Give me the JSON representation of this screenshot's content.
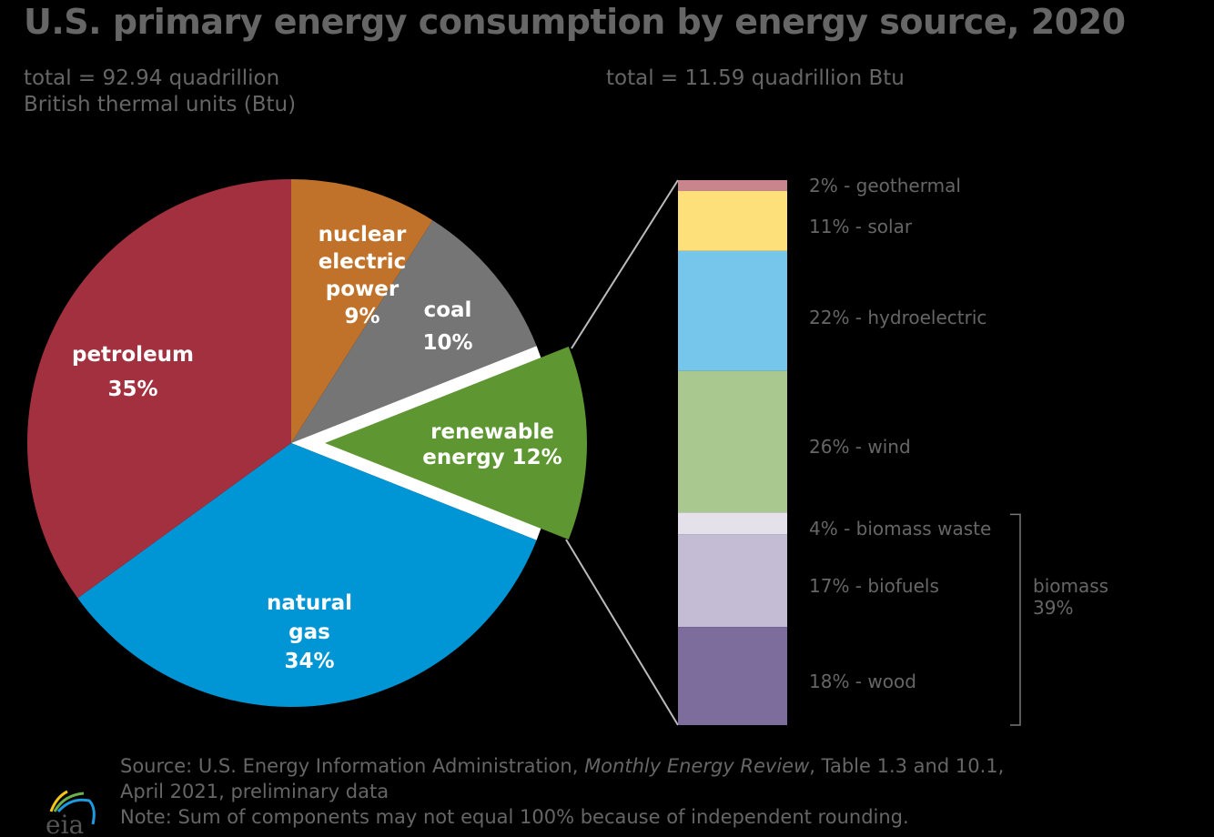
{
  "chart_data": [
    {
      "type": "pie",
      "title": "U.S. primary energy consumption by energy source, 2020",
      "subtitle": "total = 92.94 quadrillion British thermal units (Btu)",
      "subtitle_lines": [
        "total = 92.94 quadrillion",
        "British thermal units (Btu)"
      ],
      "unit": "percent",
      "slices": [
        {
          "name": "nuclear electric power",
          "label_lines": [
            "nuclear",
            "electric",
            "power",
            "9%"
          ],
          "value": 9,
          "color": "#c0722a"
        },
        {
          "name": "coal",
          "label_lines": [
            "coal",
            "10%"
          ],
          "value": 10,
          "color": "#757575"
        },
        {
          "name": "renewable energy",
          "label_lines": [
            "renewable",
            "energy 12%"
          ],
          "value": 12,
          "color": "#5e9732",
          "exploded": true
        },
        {
          "name": "natural gas",
          "label_lines": [
            "natural",
            "gas",
            "34%"
          ],
          "value": 34,
          "color": "#0096d6"
        },
        {
          "name": "petroleum",
          "label_lines": [
            "petroleum",
            "35%"
          ],
          "value": 35,
          "color": "#a3303f"
        }
      ]
    },
    {
      "type": "bar",
      "stacked": true,
      "subtitle": "total = 11.59 quadrillion Btu",
      "unit": "percent",
      "segments": [
        {
          "name": "geothermal",
          "label": "2% - geothermal",
          "value": 2,
          "color": "#c8868c"
        },
        {
          "name": "solar",
          "label": "11% - solar",
          "value": 11,
          "color": "#fde07a"
        },
        {
          "name": "hydroelectric",
          "label": "22% - hydroelectric",
          "value": 22,
          "color": "#76c5ea"
        },
        {
          "name": "wind",
          "label": "26% - wind",
          "value": 26,
          "color": "#a8c890"
        },
        {
          "name": "biomass waste",
          "label": "4% - biomass waste",
          "value": 4,
          "color": "#e4e1ea"
        },
        {
          "name": "biofuels",
          "label": "17% - biofuels",
          "value": 17,
          "color": "#c4bcd4"
        },
        {
          "name": "wood",
          "label": "18% - wood",
          "value": 18,
          "color": "#7d6d9c"
        }
      ],
      "group_annotation": {
        "label_lines": [
          "biomass",
          "39%"
        ],
        "value": 39
      }
    }
  ],
  "source": {
    "prefix": "Source: U.S. Energy Information Administration, ",
    "publication": "Monthly Energy Review",
    "suffix": ", Table 1.3 and 10.1,",
    "line2": "April 2021, preliminary data",
    "note": "Note: Sum of components may not equal 100% because of independent rounding."
  },
  "logo_text": "eia"
}
